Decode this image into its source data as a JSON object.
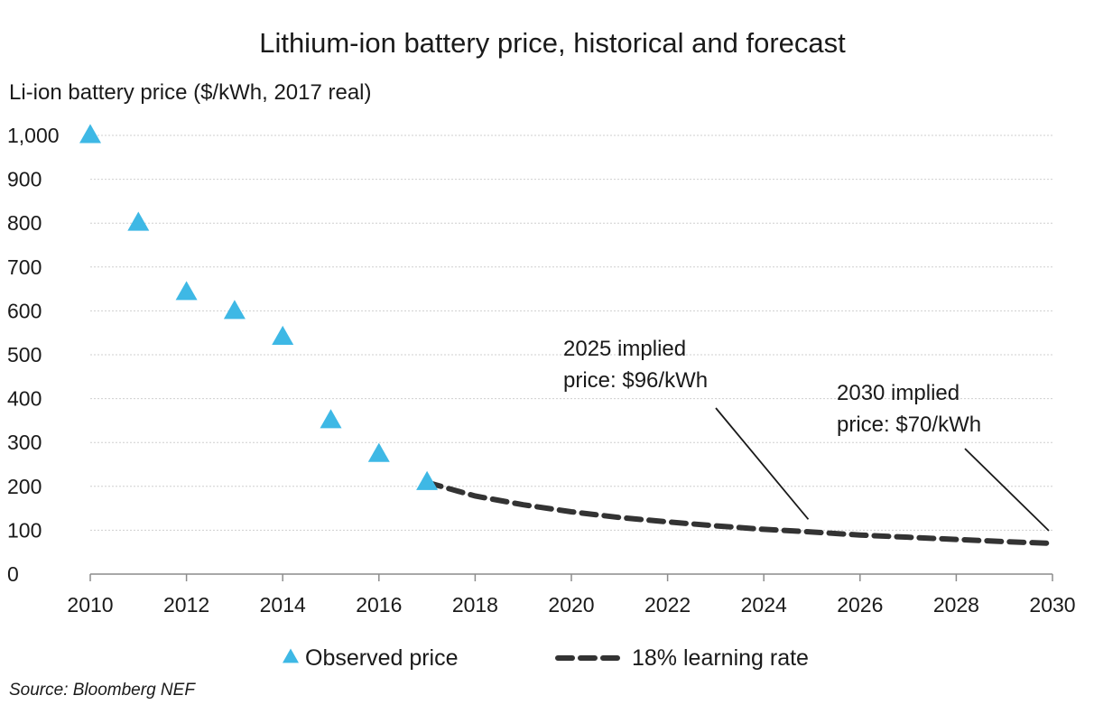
{
  "chart_data": {
    "type": "scatter",
    "title": "Lithium-ion battery price, historical and forecast",
    "ylabel": "Li-ion battery price ($/kWh, 2017 real)",
    "xlabel": "",
    "xlim": [
      2010,
      2030
    ],
    "ylim": [
      0,
      1000
    ],
    "x_ticks": [
      "2010",
      "2012",
      "2014",
      "2016",
      "2018",
      "2020",
      "2022",
      "2024",
      "2026",
      "2028",
      "2030"
    ],
    "y_ticks": [
      "0",
      "100",
      "200",
      "300",
      "400",
      "500",
      "600",
      "700",
      "800",
      "900",
      "1,000"
    ],
    "grid": true,
    "legend_position": "bottom",
    "series": [
      {
        "name": "Observed price",
        "kind": "scatter",
        "marker": "triangle",
        "color": "#3eb8e5",
        "x": [
          2010,
          2011,
          2012,
          2013,
          2014,
          2015,
          2016,
          2017
        ],
        "y": [
          1000,
          800,
          642,
          599,
          540,
          350,
          273,
          209
        ]
      },
      {
        "name": "18% learning rate",
        "kind": "line",
        "style": "dashed",
        "color": "#333333",
        "x": [
          2017,
          2018,
          2019,
          2020,
          2021,
          2022,
          2023,
          2024,
          2025,
          2026,
          2027,
          2028,
          2029,
          2030
        ],
        "y": [
          209,
          178,
          158,
          142,
          129,
          119,
          110,
          102,
          96,
          89,
          84,
          79,
          74,
          70
        ]
      }
    ],
    "annotations": [
      {
        "lines": [
          "2025 implied",
          "price: $96/kWh"
        ],
        "x": 2025,
        "y": 96
      },
      {
        "lines": [
          "2030 implied",
          "price: $70/kWh"
        ],
        "x": 2030,
        "y": 70
      }
    ],
    "source": "Source: Bloomberg NEF"
  }
}
